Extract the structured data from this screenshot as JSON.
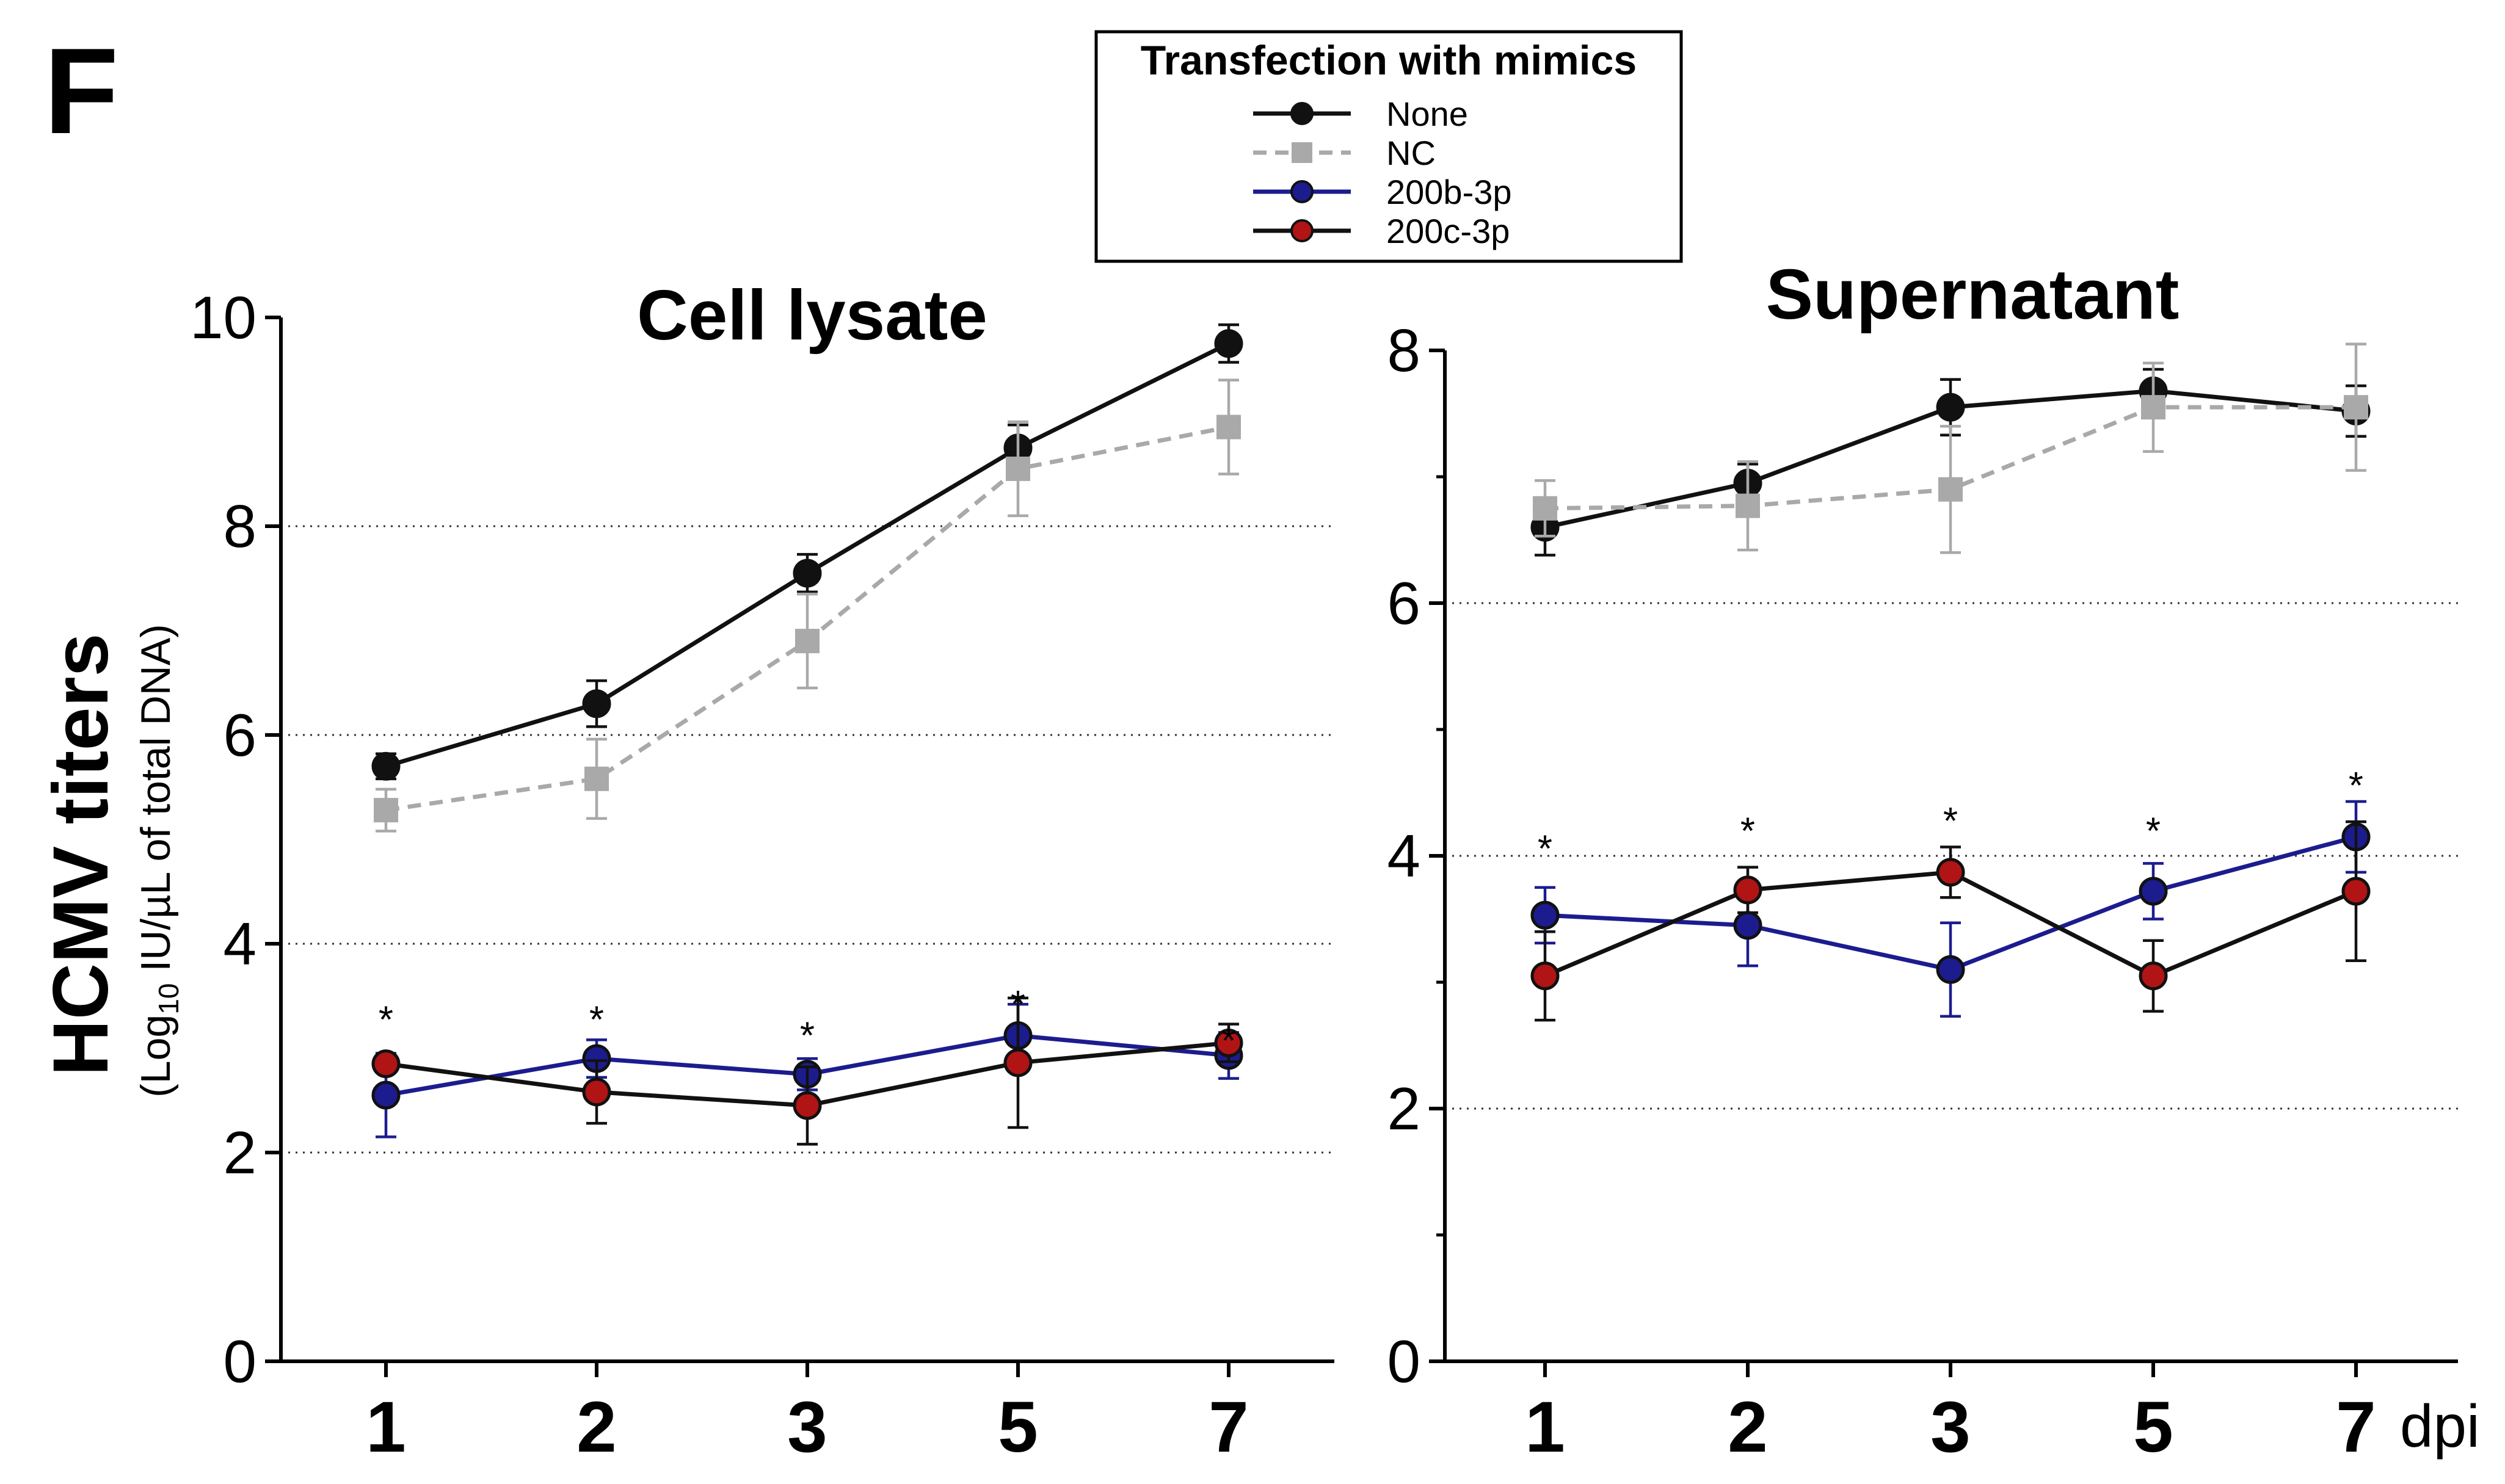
{
  "panel_label": "F",
  "y_axis": {
    "title": "HCMV titers",
    "subtitle_pre": "(Log",
    "subtitle_sub": "10",
    "subtitle_post": " IU/µL of total DNA)"
  },
  "x_unit_label": "dpi",
  "legend": {
    "title": "Transfection with mimics",
    "items": [
      {
        "name": "None",
        "color": "#111111",
        "marker": "circle",
        "fill": "#111111",
        "dash": "solid"
      },
      {
        "name": "NC",
        "color": "#a9a9a9",
        "marker": "square",
        "fill": "#a9a9a9",
        "dash": "dashed"
      },
      {
        "name": "200b-3p",
        "color": "#1c1c8f",
        "marker": "circle",
        "fill": "#1c1c8f",
        "dash": "solid"
      },
      {
        "name": "200c-3p",
        "color": "#111111",
        "marker": "circle",
        "fill": "#b01414",
        "dash": "solid"
      }
    ]
  },
  "chart_data": [
    {
      "type": "line",
      "title": "Cell lysate",
      "xlabel": "dpi",
      "ylabel": "HCMV titers (Log10 IU/µL of total DNA)",
      "categories": [
        "1",
        "2",
        "3",
        "5",
        "7"
      ],
      "ylim": [
        0,
        10
      ],
      "yticks": [
        "0",
        "2",
        "4",
        "6",
        "8",
        "10"
      ],
      "gridlines": [
        2,
        4,
        6,
        8
      ],
      "series": [
        {
          "name": "None",
          "values": [
            5.7,
            6.3,
            7.55,
            8.75,
            9.75
          ],
          "errors": [
            0.12,
            0.22,
            0.18,
            0.22,
            0.18
          ]
        },
        {
          "name": "NC",
          "values": [
            5.28,
            5.58,
            6.9,
            8.55,
            8.95
          ],
          "errors": [
            0.2,
            0.38,
            0.45,
            0.45,
            0.45
          ]
        },
        {
          "name": "200b-3p",
          "values": [
            2.55,
            2.9,
            2.75,
            3.12,
            2.93
          ],
          "errors": [
            0.4,
            0.18,
            0.15,
            0.3,
            0.22
          ]
        },
        {
          "name": "200c-3p",
          "values": [
            2.85,
            2.58,
            2.45,
            2.86,
            3.05
          ],
          "errors": [
            0.08,
            0.3,
            0.37,
            0.62,
            0.18
          ]
        }
      ],
      "significance": [
        "*",
        "*",
        "*",
        "*",
        "*"
      ],
      "significance_y": [
        3.3,
        3.3,
        3.15,
        3.45,
        3.1
      ]
    },
    {
      "type": "line",
      "title": "Supernatant",
      "xlabel": "dpi",
      "ylabel": "HCMV titers (Log10 IU/µL of total DNA)",
      "categories": [
        "1",
        "2",
        "3",
        "5",
        "7"
      ],
      "ylim": [
        0,
        8
      ],
      "yticks": [
        "0",
        "2",
        "4",
        "6",
        "8"
      ],
      "minor_ticks": [
        1,
        3,
        5,
        7
      ],
      "gridlines": [
        2,
        4,
        6
      ],
      "series": [
        {
          "name": "None",
          "values": [
            6.6,
            6.95,
            7.55,
            7.68,
            7.52
          ],
          "errors": [
            0.22,
            0.15,
            0.22,
            0.17,
            0.2
          ]
        },
        {
          "name": "NC",
          "values": [
            6.75,
            6.77,
            6.9,
            7.55,
            7.55
          ],
          "errors": [
            0.22,
            0.35,
            0.5,
            0.35,
            0.5
          ]
        },
        {
          "name": "200b-3p",
          "values": [
            3.53,
            3.45,
            3.1,
            3.72,
            4.15
          ],
          "errors": [
            0.22,
            0.32,
            0.37,
            0.22,
            0.28
          ]
        },
        {
          "name": "200c-3p",
          "values": [
            3.05,
            3.73,
            3.87,
            3.05,
            3.72
          ],
          "errors": [
            0.35,
            0.18,
            0.2,
            0.28,
            0.55
          ]
        }
      ],
      "significance": [
        "*",
        "*",
        "*",
        "*",
        "*"
      ],
      "significance_y": [
        4.08,
        4.22,
        4.3,
        4.22,
        4.58
      ]
    }
  ]
}
